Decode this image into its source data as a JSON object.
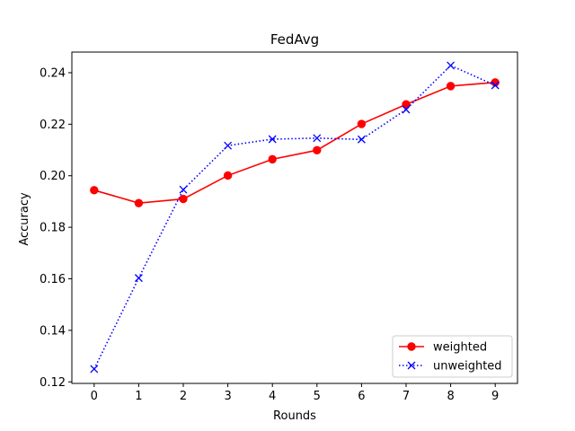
{
  "chart_data": {
    "type": "line",
    "title": "FedAvg",
    "xlabel": "Rounds",
    "ylabel": "Accuracy",
    "x": [
      0,
      1,
      2,
      3,
      4,
      5,
      6,
      7,
      8,
      9
    ],
    "xlim": [
      -0.5,
      9.5
    ],
    "ylim": [
      0.1194,
      0.248
    ],
    "xticks": [
      "0",
      "1",
      "2",
      "3",
      "4",
      "5",
      "6",
      "7",
      "8",
      "9"
    ],
    "yticks": [
      "0.12",
      "0.14",
      "0.16",
      "0.18",
      "0.20",
      "0.22",
      "0.24"
    ],
    "ytick_values": [
      0.12,
      0.14,
      0.16,
      0.18,
      0.2,
      0.22,
      0.24
    ],
    "grid": false,
    "legend_position": "lower-right",
    "series": [
      {
        "name": "weighted",
        "color": "#ff0000",
        "line_style": "solid",
        "marker": "circle",
        "values": [
          0.1944,
          0.1894,
          0.191,
          0.2001,
          0.2064,
          0.2099,
          0.2201,
          0.2277,
          0.2348,
          0.2362
        ]
      },
      {
        "name": "unweighted",
        "color": "#0000ff",
        "line_style": "dotted",
        "marker": "x",
        "values": [
          0.125,
          0.1603,
          0.1946,
          0.2117,
          0.2142,
          0.2146,
          0.2141,
          0.2257,
          0.2428,
          0.2351
        ]
      }
    ]
  }
}
